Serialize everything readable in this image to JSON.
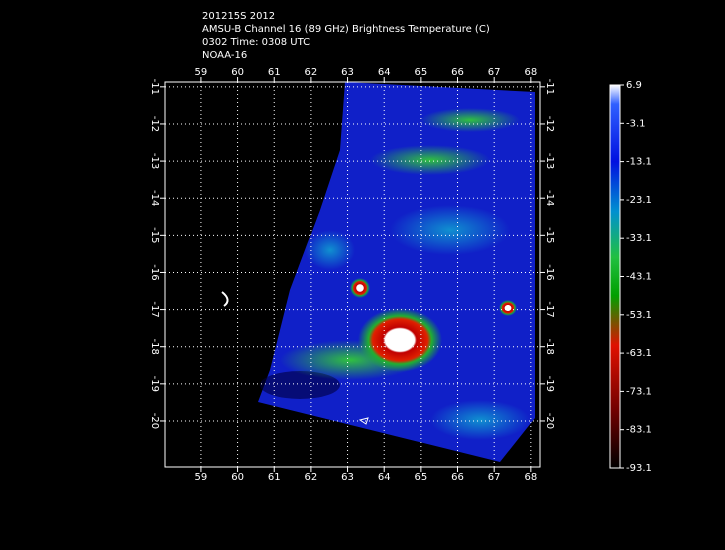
{
  "header": {
    "lines": [
      "201215S 2012",
      "AMSU-B Channel 16 (89 GHz) Brightness Temperature (C)",
      "0302 Time: 0308 UTC",
      "NOAA-16"
    ]
  },
  "map": {
    "lon_range": [
      58.02,
      68.25
    ],
    "lat_range": [
      -10.87,
      -21.24
    ],
    "lon_ticks": [
      59,
      60,
      61,
      62,
      63,
      64,
      65,
      66,
      67,
      68
    ],
    "lat_ticks": [
      -11,
      -12,
      -13,
      -14,
      -15,
      -16,
      -17,
      -18,
      -19,
      -20
    ],
    "grid": true
  },
  "colorbar": {
    "range": [
      6.9,
      -93.1
    ],
    "ticks": [
      6.9,
      -3.1,
      -13.1,
      -23.1,
      -33.1,
      -43.1,
      -53.1,
      -63.1,
      -73.1,
      -83.1,
      -93.1
    ]
  }
}
